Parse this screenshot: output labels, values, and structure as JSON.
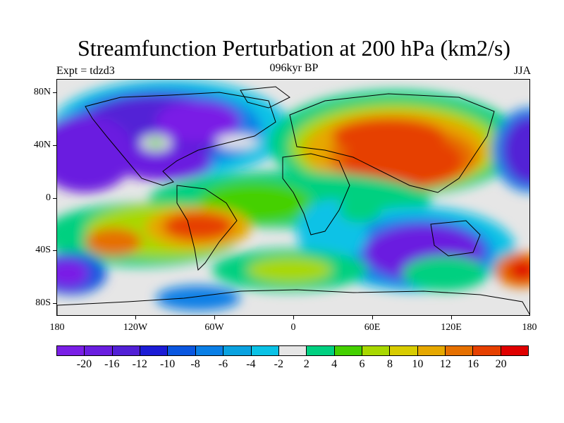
{
  "title": "Streamfunction Perturbation at 200 hPa (km2/s)",
  "left_subtitle": "Expt = tdzd3",
  "center_subtitle": "096kyr BP",
  "right_subtitle": "JJA",
  "lat_labels": [
    "80N",
    "40N",
    "0",
    "40S",
    "80S"
  ],
  "lon_labels": [
    "180",
    "120W",
    "60W",
    "0",
    "60E",
    "120E",
    "180"
  ],
  "colorbar": {
    "colors": [
      "#7a1fe6",
      "#6a1ee0",
      "#5220d6",
      "#1c1cd6",
      "#0a57e0",
      "#0a7fe6",
      "#0aa2e0",
      "#0ac2e6",
      "#e6e6e6",
      "#00d080",
      "#44d000",
      "#a8d800",
      "#d8cc00",
      "#e6a800",
      "#e67000",
      "#e64000",
      "#e00000"
    ],
    "labels": [
      "-20",
      "-16",
      "-12",
      "-10",
      "-8",
      "-6",
      "-4",
      "-2",
      "2",
      "4",
      "6",
      "8",
      "10",
      "12",
      "16",
      "20"
    ]
  }
}
